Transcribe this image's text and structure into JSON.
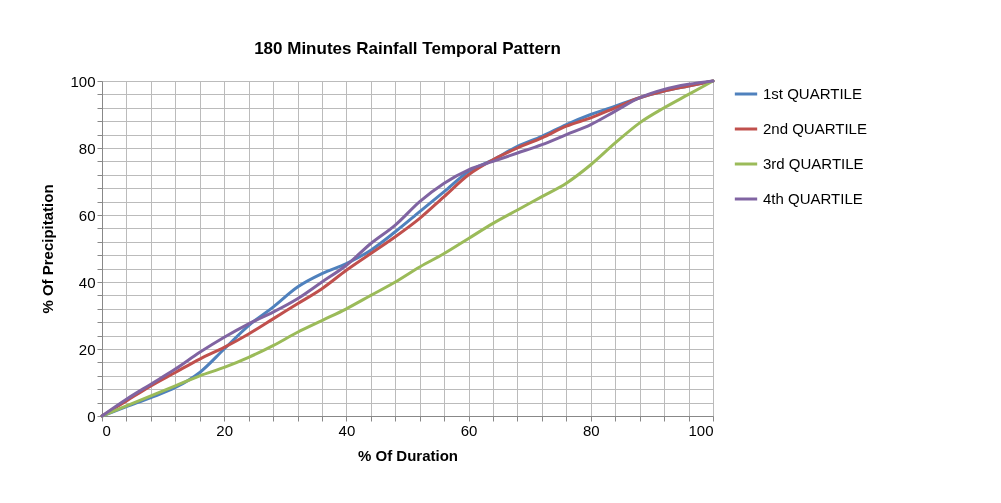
{
  "chart_data": {
    "type": "line",
    "title": "180 Minutes Rainfall Temporal Pattern",
    "xlabel": "% Of Duration",
    "ylabel": "% Of Precipitation",
    "x": [
      0,
      4,
      8,
      12,
      16,
      20,
      24,
      28,
      32,
      36,
      40,
      44,
      48,
      52,
      56,
      60,
      64,
      68,
      72,
      76,
      80,
      84,
      88,
      92,
      96,
      100
    ],
    "series": [
      {
        "name": "1st QUARTILE",
        "color": "#4f81bd",
        "values": [
          0,
          2.8,
          5.5,
          8.5,
          13,
          20,
          27,
          32.5,
          38.5,
          42.5,
          45.5,
          49.5,
          55,
          61,
          67,
          73,
          76.5,
          80.5,
          83.5,
          87,
          90,
          92.5,
          95,
          97,
          98.5,
          100
        ]
      },
      {
        "name": "2nd QUARTILE",
        "color": "#c0504d",
        "values": [
          0,
          4.5,
          9,
          13,
          17,
          20.5,
          24.5,
          29,
          33.5,
          38,
          43.5,
          48.5,
          53.5,
          59,
          65.5,
          72,
          76.5,
          80,
          83,
          86.5,
          89,
          92,
          95,
          97,
          98.5,
          100
        ]
      },
      {
        "name": "3rd QUARTILE",
        "color": "#9bbb59",
        "values": [
          0,
          3,
          6,
          9,
          12,
          14.5,
          17.5,
          21,
          25,
          28.5,
          32,
          36,
          40,
          44.5,
          48.5,
          53,
          57.5,
          61.5,
          65.5,
          69.5,
          75,
          81.5,
          87.5,
          92,
          96,
          100
        ]
      },
      {
        "name": "4th QUARTILE",
        "color": "#8064a2",
        "values": [
          0,
          5,
          9.5,
          14,
          19,
          23.5,
          27.5,
          31,
          35,
          40,
          45,
          51.5,
          57,
          64,
          69.5,
          73.5,
          76,
          78.5,
          81,
          84,
          87,
          91,
          95,
          97.5,
          99,
          100
        ]
      }
    ],
    "xlim": [
      0,
      100
    ],
    "ylim": [
      0,
      100
    ],
    "xticks": [
      0,
      {
        "value": 4,
        "label": null
      },
      {
        "value": 8,
        "label": null
      },
      {
        "value": 12,
        "label": null
      },
      {
        "value": 16,
        "label": null
      },
      20,
      {
        "value": 24,
        "label": null
      },
      {
        "value": 28,
        "label": null
      },
      {
        "value": 32,
        "label": null
      },
      {
        "value": 36,
        "label": null
      },
      40,
      {
        "value": 44,
        "label": null
      },
      {
        "value": 48,
        "label": null
      },
      {
        "value": 52,
        "label": null
      },
      {
        "value": 56,
        "label": null
      },
      60,
      {
        "value": 64,
        "label": null
      },
      {
        "value": 68,
        "label": null
      },
      {
        "value": 72,
        "label": null
      },
      {
        "value": 76,
        "label": null
      },
      80,
      {
        "value": 84,
        "label": null
      },
      {
        "value": 88,
        "label": null
      },
      {
        "value": 92,
        "label": null
      },
      {
        "value": 96,
        "label": null
      },
      100
    ],
    "yticks": [
      0,
      {
        "value": 4,
        "label": null
      },
      {
        "value": 8,
        "label": null
      },
      {
        "value": 12,
        "label": null
      },
      {
        "value": 16,
        "label": null
      },
      20,
      {
        "value": 24,
        "label": null
      },
      {
        "value": 28,
        "label": null
      },
      {
        "value": 32,
        "label": null
      },
      {
        "value": 36,
        "label": null
      },
      40,
      {
        "value": 44,
        "label": null
      },
      {
        "value": 48,
        "label": null
      },
      {
        "value": 52,
        "label": null
      },
      {
        "value": 56,
        "label": null
      },
      60,
      {
        "value": 64,
        "label": null
      },
      {
        "value": 68,
        "label": null
      },
      {
        "value": 72,
        "label": null
      },
      {
        "value": 76,
        "label": null
      },
      80,
      {
        "value": 84,
        "label": null
      },
      {
        "value": 88,
        "label": null
      },
      {
        "value": 92,
        "label": null
      },
      {
        "value": 96,
        "label": null
      },
      100
    ],
    "grid": true,
    "legend": "right",
    "marker": "none",
    "line_style": "solid"
  }
}
